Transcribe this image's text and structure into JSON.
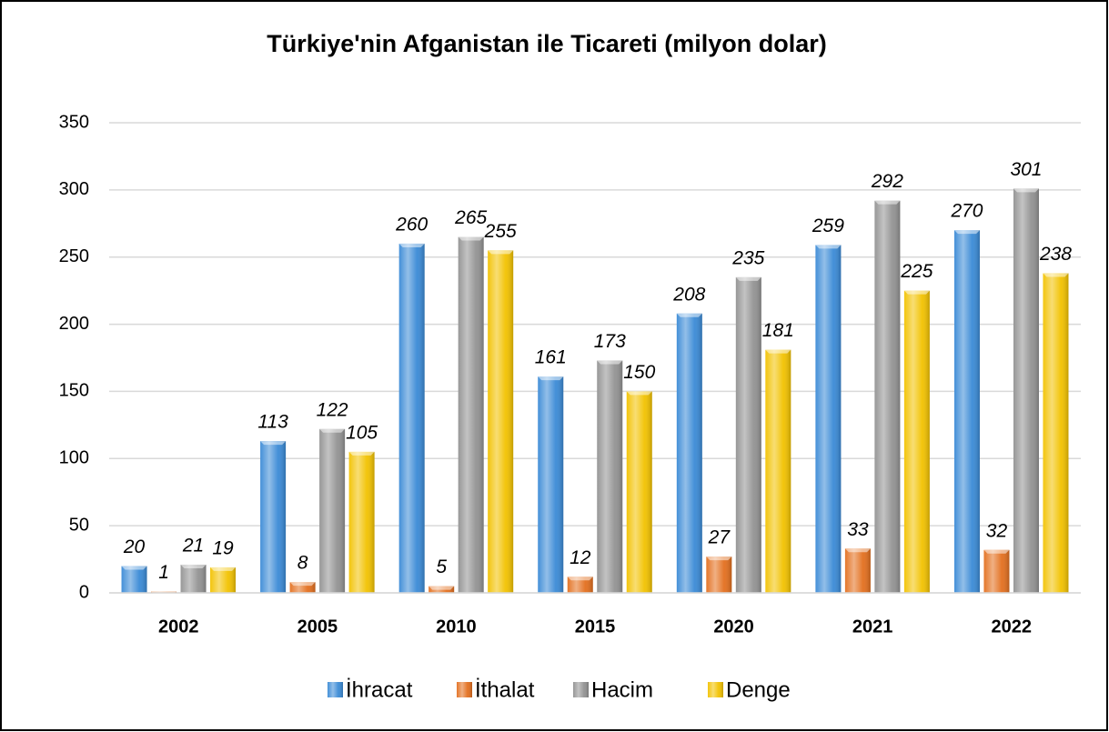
{
  "chart_data": {
    "type": "bar",
    "title": "Türkiye'nin Afganistan ile Ticareti (milyon dolar)",
    "categories": [
      "2002",
      "2005",
      "2010",
      "2015",
      "2020",
      "2021",
      "2022"
    ],
    "series": [
      {
        "name": "İhracat",
        "color": "#3a8ad6",
        "values": [
          20,
          113,
          260,
          161,
          208,
          259,
          270
        ]
      },
      {
        "name": "İthalat",
        "color": "#e36f1e",
        "values": [
          1,
          8,
          5,
          12,
          27,
          33,
          32
        ]
      },
      {
        "name": "Hacim",
        "color": "#929292",
        "values": [
          21,
          122,
          265,
          173,
          235,
          292,
          301
        ]
      },
      {
        "name": "Denge",
        "color": "#f2c200",
        "values": [
          19,
          105,
          255,
          150,
          181,
          225,
          238
        ]
      }
    ],
    "ylim": [
      0,
      350
    ],
    "yticks": [
      0,
      50,
      100,
      150,
      200,
      250,
      300,
      350
    ],
    "grid": true
  }
}
